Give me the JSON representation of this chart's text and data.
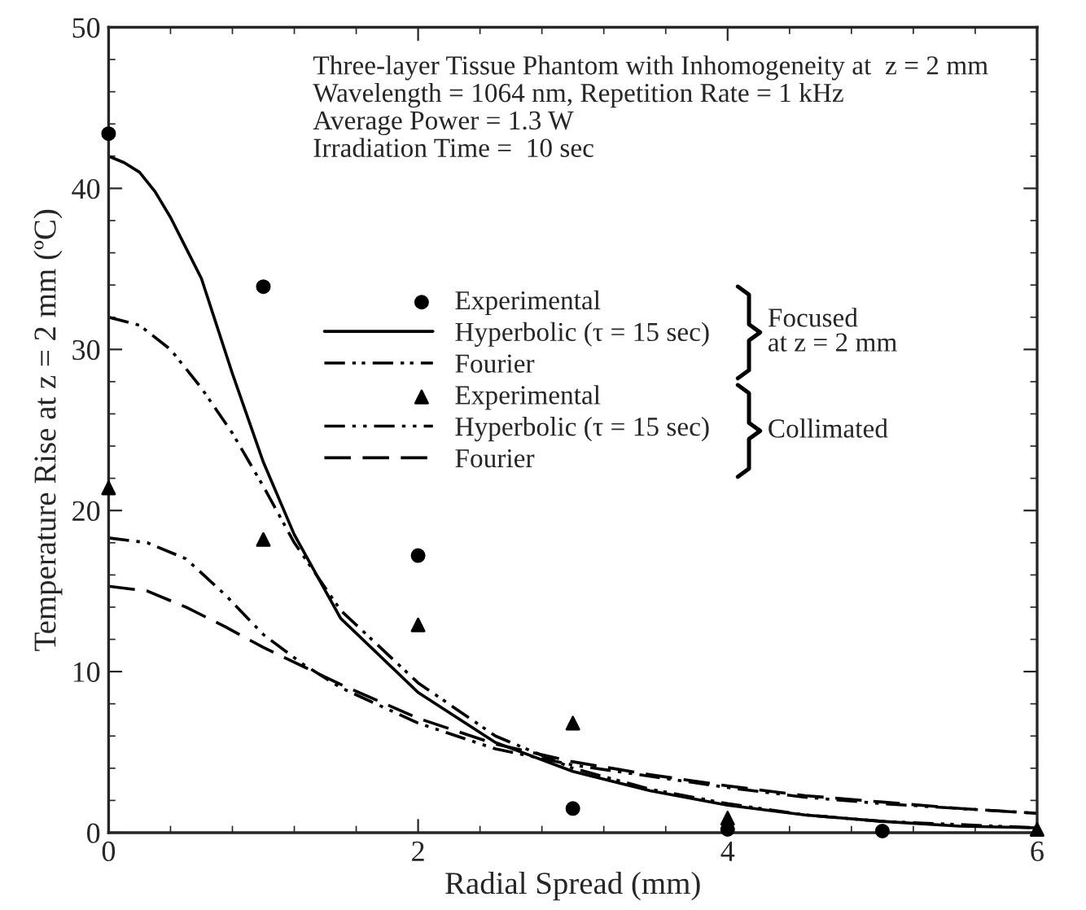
{
  "chart_data": {
    "type": "line",
    "xlabel": "Radial Spread (mm)",
    "ylabel": "Temperature Rise at z = 2 mm (ºC)",
    "xlim": [
      0,
      6
    ],
    "xticks": [
      0,
      2,
      4,
      6
    ],
    "ylim": [
      0,
      50
    ],
    "yticks": [
      0,
      10,
      20,
      30,
      40,
      50
    ],
    "grid": false,
    "legend": "center",
    "annotations": [
      "Three-layer Tissue Phantom with Inhomogeneity at  z = 2 mm\nWavelength = 1064 nm, Repetition Rate = 1 kHz\nAverage Power = 1.3 W\nIrradiation Time =  10 sec",
      "Focused\nat z = 2 mm",
      "Collimated"
    ],
    "series": [
      {
        "name": "Experimental",
        "type": "scatter",
        "marker": "circle",
        "color": "#000000",
        "x": [
          0,
          1,
          2,
          3,
          4,
          5
        ],
        "values": [
          43.4,
          33.9,
          17.2,
          1.5,
          0.2,
          0.1
        ]
      },
      {
        "name": "Hyperbolic (τ = 15 sec)",
        "type": "line",
        "line_style": "solid",
        "color": "#000000",
        "x": [
          0,
          0.1,
          0.2,
          0.3,
          0.4,
          0.5,
          0.6,
          0.8,
          1.0,
          1.2,
          1.5,
          2.0,
          2.5,
          3.0,
          3.5,
          4.0,
          4.5,
          5.0,
          5.5,
          6.0
        ],
        "values": [
          42,
          41.6,
          41,
          39.8,
          38.2,
          36.3,
          34.4,
          28.5,
          23,
          18.5,
          13.3,
          8.7,
          5.6,
          3.8,
          2.6,
          1.7,
          1.1,
          0.7,
          0.4,
          0.3
        ]
      },
      {
        "name": "Fourier",
        "type": "line",
        "line_style": "dashdotdot",
        "color": "#000000",
        "x": [
          0,
          0.2,
          0.4,
          0.6,
          0.8,
          1.0,
          1.2,
          1.5,
          2.0,
          2.5,
          3.0,
          3.5,
          4.0,
          4.5,
          5.0,
          5.5,
          6.0
        ],
        "values": [
          32,
          31.5,
          30,
          27.6,
          24.8,
          21.5,
          18,
          13.8,
          9.3,
          6.0,
          4.0,
          2.7,
          1.8,
          1.1,
          0.7,
          0.5,
          0.3
        ]
      },
      {
        "name": "Experimental",
        "type": "scatter",
        "marker": "triangle",
        "color": "#000000",
        "x": [
          0,
          1,
          2,
          3,
          4,
          6
        ],
        "values": [
          21.4,
          18.2,
          12.9,
          6.8,
          0.9,
          0.2
        ]
      },
      {
        "name": "Hyperbolic (τ = 15 sec)",
        "type": "line",
        "line_style": "dashdot",
        "color": "#000000",
        "x": [
          0,
          0.25,
          0.5,
          0.75,
          1.0,
          1.25,
          1.5,
          2.0,
          2.5,
          3.0,
          3.5,
          4.0,
          4.5,
          5.0,
          5.5,
          6.0
        ],
        "values": [
          18.3,
          18,
          17,
          14.8,
          12.3,
          10.5,
          9.0,
          6.8,
          5.2,
          4.2,
          3.5,
          2.8,
          2.2,
          1.8,
          1.5,
          1.2
        ]
      },
      {
        "name": "Fourier",
        "type": "line",
        "line_style": "dashed",
        "color": "#000000",
        "x": [
          0,
          0.25,
          0.5,
          0.75,
          1.0,
          1.5,
          2.0,
          2.5,
          3.0,
          3.5,
          4.0,
          4.5,
          5.0,
          5.5,
          6.0
        ],
        "values": [
          15.3,
          15,
          14,
          12.8,
          11.5,
          9.2,
          7.1,
          5.5,
          4.4,
          3.6,
          2.9,
          2.3,
          1.9,
          1.5,
          1.2
        ]
      }
    ]
  }
}
